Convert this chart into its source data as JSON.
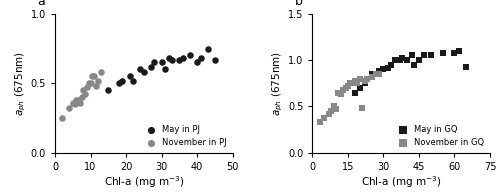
{
  "panel_a": {
    "label": "a",
    "may_x": [
      15,
      18,
      19,
      21,
      22,
      24,
      25,
      27,
      28,
      30,
      31,
      32,
      33,
      35,
      36,
      38,
      40,
      41,
      43,
      45
    ],
    "may_y": [
      0.45,
      0.5,
      0.52,
      0.55,
      0.52,
      0.6,
      0.58,
      0.62,
      0.65,
      0.65,
      0.6,
      0.68,
      0.67,
      0.67,
      0.68,
      0.7,
      0.65,
      0.68,
      0.75,
      0.67
    ],
    "nov_x": [
      2,
      4,
      5,
      5.5,
      6,
      6.5,
      7,
      7.5,
      8,
      8.5,
      9,
      9.5,
      10,
      10.5,
      11,
      11.5,
      12,
      13
    ],
    "nov_y": [
      0.25,
      0.32,
      0.36,
      0.35,
      0.38,
      0.38,
      0.36,
      0.4,
      0.45,
      0.42,
      0.47,
      0.5,
      0.5,
      0.55,
      0.55,
      0.48,
      0.52,
      0.58
    ],
    "xlabel": "Chl-a (mg m$^{-3}$)",
    "ylabel": "$a_{ph}$ (675nm)",
    "xlim": [
      0,
      50
    ],
    "ylim": [
      0,
      1
    ],
    "xticks": [
      0,
      10,
      20,
      30,
      40,
      50
    ],
    "yticks": [
      0,
      0.5,
      1
    ],
    "legend1": "May in PJ",
    "legend2": "November in PJ",
    "marker": "o"
  },
  "panel_b": {
    "label": "b",
    "may_x": [
      18,
      20,
      22,
      25,
      28,
      30,
      32,
      33,
      35,
      37,
      38,
      40,
      42,
      43,
      45,
      47,
      50,
      55,
      60,
      62,
      65
    ],
    "may_y": [
      0.65,
      0.7,
      0.75,
      0.85,
      0.88,
      0.9,
      0.92,
      0.95,
      1.0,
      1.0,
      1.02,
      1.0,
      1.05,
      0.95,
      1.0,
      1.05,
      1.05,
      1.08,
      1.08,
      1.1,
      0.93
    ],
    "nov_x": [
      3,
      5,
      7,
      8,
      9,
      10,
      11,
      12,
      13,
      14,
      15,
      16,
      17,
      18,
      19,
      20,
      21,
      22,
      23,
      25,
      27,
      28
    ],
    "nov_y": [
      0.33,
      0.38,
      0.42,
      0.45,
      0.5,
      0.47,
      0.65,
      0.63,
      0.68,
      0.7,
      0.72,
      0.75,
      0.75,
      0.78,
      0.75,
      0.8,
      0.48,
      0.78,
      0.8,
      0.82,
      0.85,
      0.85
    ],
    "xlabel": "Chl-a (mg m$^{-3}$)",
    "ylabel": "$a_{ph}$ (675nm)",
    "xlim": [
      0,
      75
    ],
    "ylim": [
      0,
      1.5
    ],
    "xticks": [
      0,
      15,
      30,
      45,
      60,
      75
    ],
    "yticks": [
      0,
      0.5,
      1.0,
      1.5
    ],
    "legend1": "May in GQ",
    "legend2": "November in GQ",
    "marker": "s"
  },
  "may_color": "#1a1a1a",
  "nov_color": "#888888",
  "marker_size": 22,
  "fontsize": 7.5,
  "label_fontsize": 9
}
